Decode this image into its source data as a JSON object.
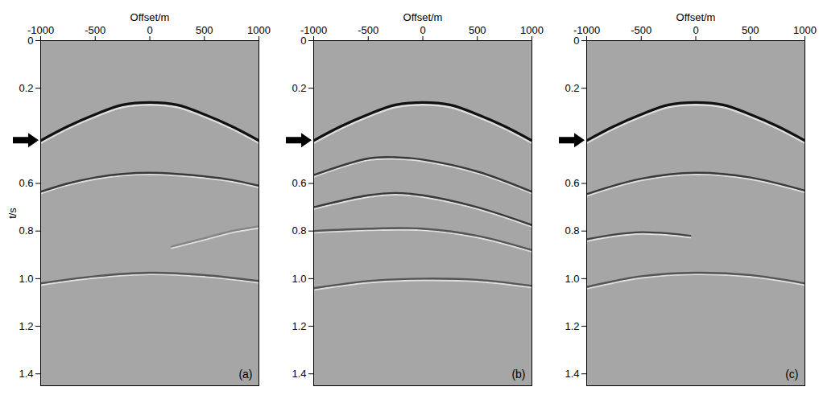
{
  "chart_data": [
    {
      "type": "line",
      "panel_label": "(a)",
      "x_label": "Offset/m",
      "y_label": "t/s",
      "xlim": [
        -1000,
        1000
      ],
      "xticks": [
        -1000,
        -500,
        0,
        500,
        1000
      ],
      "ylim": [
        0,
        1.45
      ],
      "yticks": [
        0,
        0.2,
        0.6,
        0.8,
        {
          "value": 1,
          "label": "1.0"
        },
        1.2,
        1.4
      ],
      "arrow_at": 0.42,
      "series": [
        {
          "color": "#111111",
          "x": [
            -1000,
            -750,
            -500,
            -250,
            0,
            250,
            500,
            750,
            1000
          ],
          "values": [
            0.42,
            0.36,
            0.31,
            0.27,
            0.26,
            0.27,
            0.31,
            0.36,
            0.42
          ]
        },
        {
          "color": "#3a3a3a",
          "x": [
            -1000,
            -750,
            -500,
            -250,
            0,
            250,
            500,
            750,
            1000
          ],
          "values": [
            0.635,
            0.6,
            0.575,
            0.56,
            0.555,
            0.56,
            0.57,
            0.585,
            0.61
          ]
        },
        {
          "color": "#858585",
          "x": [
            200,
            500,
            750,
            1000
          ],
          "values": [
            0.865,
            0.83,
            0.8,
            0.78
          ]
        },
        {
          "color": "#555555",
          "x": [
            -1000,
            -500,
            0,
            500,
            1000
          ],
          "values": [
            1.02,
            0.99,
            0.975,
            0.985,
            1.01
          ]
        }
      ]
    },
    {
      "type": "line",
      "panel_label": "(b)",
      "x_label": "Offset/m",
      "xlim": [
        -1000,
        1000
      ],
      "xticks": [
        -1000,
        -500,
        0,
        500,
        1000
      ],
      "ylim": [
        0,
        1.45
      ],
      "yticks": [
        0,
        0.2,
        0.6,
        0.8,
        {
          "value": 1,
          "label": "1.0"
        },
        1.2,
        1.4
      ],
      "arrow_at": 0.42,
      "series": [
        {
          "color": "#111111",
          "x": [
            -1000,
            -750,
            -500,
            -250,
            0,
            250,
            500,
            750,
            1000
          ],
          "values": [
            0.42,
            0.36,
            0.31,
            0.27,
            0.26,
            0.27,
            0.31,
            0.36,
            0.42
          ]
        },
        {
          "color": "#3a3a3a",
          "x": [
            -1000,
            -500,
            -250,
            0,
            500,
            1000
          ],
          "values": [
            0.565,
            0.495,
            0.49,
            0.5,
            0.55,
            0.635
          ]
        },
        {
          "color": "#3a3a3a",
          "x": [
            -1000,
            -500,
            -250,
            0,
            500,
            1000
          ],
          "values": [
            0.7,
            0.65,
            0.64,
            0.65,
            0.7,
            0.775
          ]
        },
        {
          "color": "#555555",
          "x": [
            -1000,
            -500,
            0,
            500,
            1000
          ],
          "values": [
            0.8,
            0.79,
            0.79,
            0.82,
            0.88
          ]
        },
        {
          "color": "#555555",
          "x": [
            -1000,
            -500,
            0,
            500,
            1000
          ],
          "values": [
            1.04,
            1.01,
            1.0,
            1.005,
            1.03
          ]
        }
      ]
    },
    {
      "type": "line",
      "panel_label": "(c)",
      "x_label": "Offset/m",
      "xlim": [
        -1000,
        1000
      ],
      "xticks": [
        -1000,
        -500,
        0,
        500,
        1000
      ],
      "ylim": [
        0,
        1.45
      ],
      "yticks": [
        0,
        0.2,
        0.6,
        0.8,
        {
          "value": 1,
          "label": "1.0"
        },
        1.2,
        1.4
      ],
      "arrow_at": 0.42,
      "series": [
        {
          "color": "#111111",
          "x": [
            -1000,
            -750,
            -500,
            -250,
            0,
            250,
            500,
            750,
            1000
          ],
          "values": [
            0.42,
            0.36,
            0.31,
            0.27,
            0.26,
            0.27,
            0.31,
            0.36,
            0.42
          ]
        },
        {
          "color": "#3a3a3a",
          "x": [
            -1000,
            -500,
            0,
            500,
            1000
          ],
          "values": [
            0.645,
            0.58,
            0.555,
            0.575,
            0.63
          ]
        },
        {
          "color": "#444444",
          "x": [
            -1000,
            -750,
            -500,
            -250,
            -50
          ],
          "values": [
            0.835,
            0.815,
            0.805,
            0.81,
            0.82
          ]
        },
        {
          "color": "#555555",
          "x": [
            -1000,
            -500,
            0,
            500,
            1000
          ],
          "values": [
            1.035,
            0.99,
            0.975,
            0.985,
            1.02
          ]
        }
      ]
    }
  ]
}
